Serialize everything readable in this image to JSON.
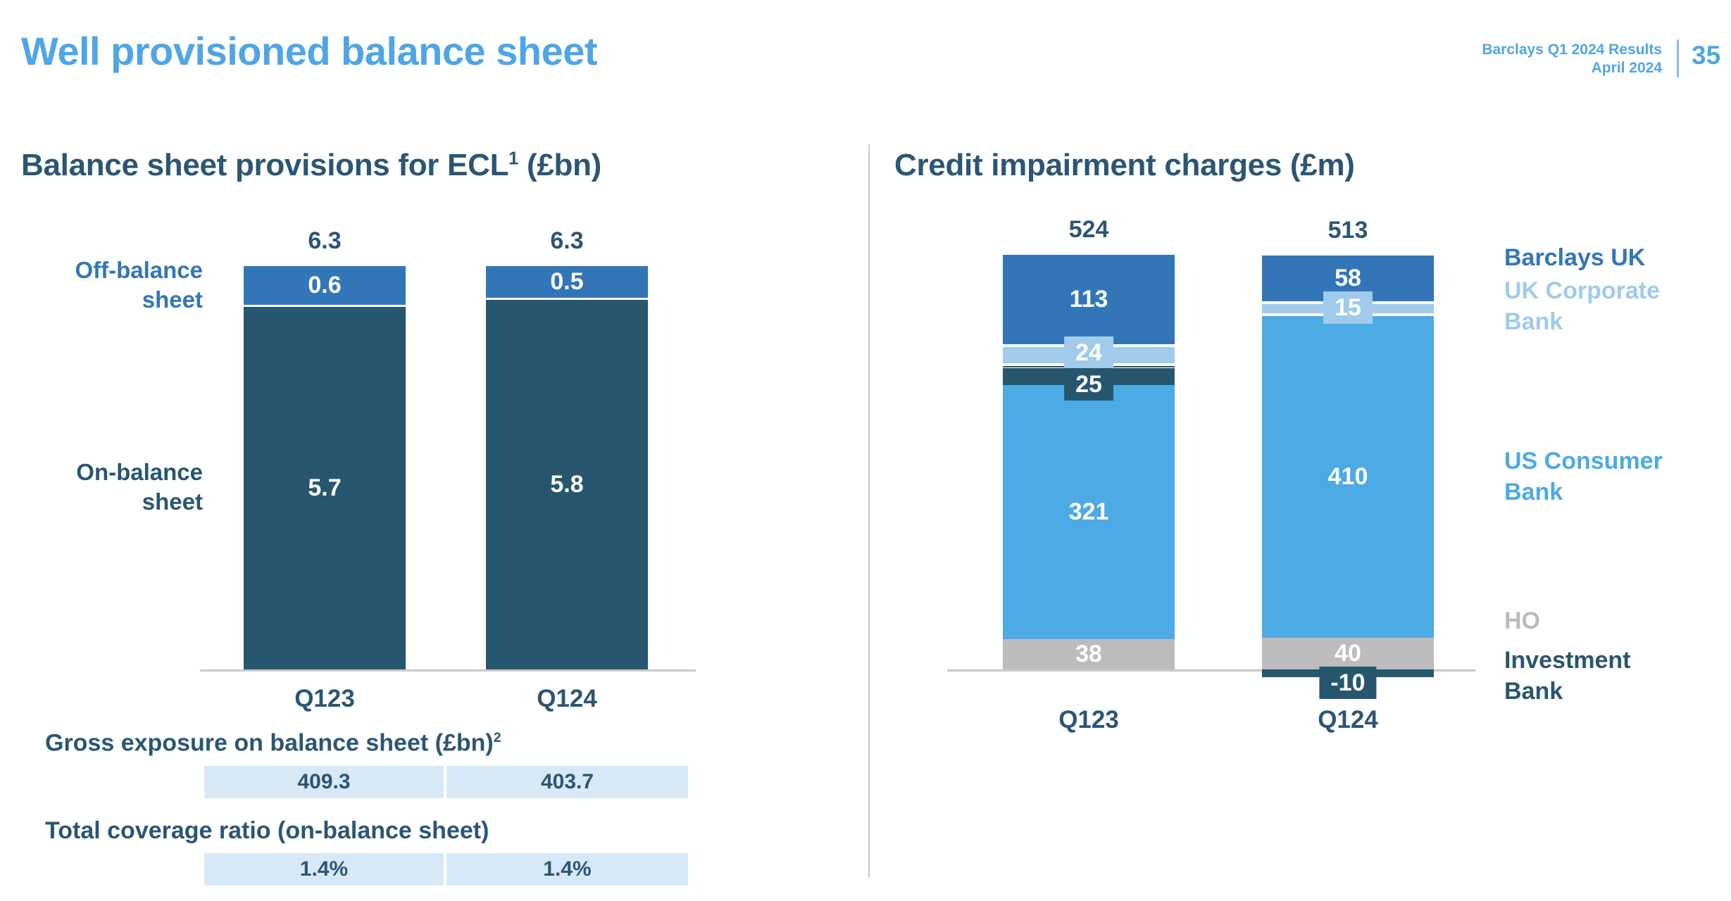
{
  "header": {
    "title": "Well provisioned balance sheet",
    "deck_title": "Barclays Q1 2024 Results",
    "deck_date": "April 2024",
    "page_number": "35"
  },
  "ui_colors": {
    "accent_blue": "#4fa5e5",
    "heading_navy": "#2b5674",
    "bar_mid_blue": "#3276b8",
    "bar_dark_navy": "#27566f",
    "bar_light_blue": "#a0cbea",
    "bar_sky_blue": "#4caae4",
    "bar_gray": "#bcbcbc",
    "table_cell_bg": "#d7e9f7",
    "axis_line_gray": "#c9c9c9"
  },
  "chart_data": [
    {
      "type": "bar",
      "stacked": true,
      "title": "Balance sheet provisions for ECL",
      "title_sup": "1",
      "title_suffix": " (£bn)",
      "categories": [
        "Q123",
        "Q124"
      ],
      "totals": [
        "6.3",
        "6.3"
      ],
      "ylim": [
        0,
        6.3
      ],
      "legend_position": "left-of-bars",
      "grid": false,
      "series": [
        {
          "name": "Off-balance sheet",
          "color": "#3276b8",
          "values": [
            0.6,
            0.5
          ]
        },
        {
          "name": "On-balance sheet",
          "color": "#27566f",
          "values": [
            5.7,
            5.8
          ]
        }
      ],
      "tables": [
        {
          "label": "Gross exposure on balance sheet (£bn)",
          "label_sup": "2",
          "values": [
            "409.3",
            "403.7"
          ]
        },
        {
          "label": "Total coverage ratio (on-balance sheet)",
          "label_sup": "",
          "values": [
            "1.4%",
            "1.4%"
          ]
        }
      ]
    },
    {
      "type": "bar",
      "stacked": true,
      "title": "Credit impairment charges (£m)",
      "categories": [
        "Q123",
        "Q124"
      ],
      "totals": [
        "524",
        "513"
      ],
      "legend_position": "right",
      "grid": false,
      "series": [
        {
          "name": "Barclays UK",
          "color": "#3276b8",
          "values": [
            113,
            58
          ]
        },
        {
          "name": "UK Corporate Bank",
          "color": "#a0cbea",
          "values": [
            24,
            15
          ]
        },
        {
          "name": "",
          "color": "#27566f",
          "values": [
            3,
            0
          ],
          "label_hidden": true
        },
        {
          "name": "Investment Bank",
          "color": "#27566f",
          "values": [
            25,
            -10
          ]
        },
        {
          "name": "US Consumer Bank",
          "color": "#4caae4",
          "values": [
            321,
            410
          ]
        },
        {
          "name": "HO",
          "color": "#bcbcbc",
          "values": [
            38,
            40
          ]
        }
      ],
      "legend": [
        {
          "label": "Barclays UK",
          "color": "#3276b8"
        },
        {
          "label": "UK Corporate Bank",
          "color": "#a0cbea"
        },
        {
          "label": "US Consumer Bank",
          "color": "#4caae4"
        },
        {
          "label": "HO",
          "color": "#bcbcbc"
        },
        {
          "label": "Investment Bank",
          "color": "#27566f"
        }
      ]
    }
  ]
}
